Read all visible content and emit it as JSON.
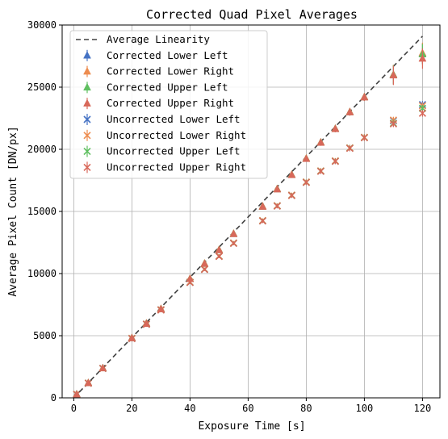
{
  "chart_data": {
    "type": "scatter",
    "title": "Corrected Quad Pixel Averages",
    "xlabel": "Exposure Time [s]",
    "ylabel": "Average Pixel Count [DN/px]",
    "xlim": [
      -4,
      126
    ],
    "ylim": [
      0,
      30000
    ],
    "xticks": [
      0,
      20,
      40,
      60,
      80,
      100,
      120
    ],
    "yticks": [
      0,
      5000,
      10000,
      15000,
      20000,
      25000,
      30000
    ],
    "grid": true,
    "legend_position": "upper-left",
    "x": [
      1,
      5,
      10,
      20,
      25,
      30,
      40,
      45,
      50,
      55,
      65,
      70,
      75,
      80,
      85,
      90,
      95,
      100,
      110,
      120
    ],
    "average_linearity": {
      "name": "Average Linearity",
      "color": "#404040",
      "x": [
        0,
        120
      ],
      "y": [
        0,
        29100
      ]
    },
    "series": [
      {
        "name": "Corrected Lower Left",
        "marker": "triangle",
        "color": "#4472c4",
        "y": [
          290,
          1200,
          2390,
          4820,
          5980,
          7150,
          9580,
          10800,
          11900,
          13200,
          15400,
          16800,
          17950,
          19250,
          20550,
          21650,
          23000,
          24200,
          26000,
          27700
        ]
      },
      {
        "name": "Corrected Lower Right",
        "marker": "triangle",
        "color": "#ed8c4f",
        "y": [
          295,
          1210,
          2400,
          4830,
          6000,
          7170,
          9600,
          10820,
          11920,
          13220,
          15420,
          16820,
          17970,
          19270,
          20570,
          21670,
          23020,
          24220,
          26020,
          27750
        ]
      },
      {
        "name": "Corrected Upper Left",
        "marker": "triangle",
        "color": "#5fbf60",
        "y": [
          285,
          1195,
          2385,
          4810,
          5970,
          7140,
          9570,
          10790,
          11890,
          13190,
          15390,
          16790,
          17940,
          19240,
          20540,
          21640,
          22990,
          24190,
          25990,
          27650
        ]
      },
      {
        "name": "Corrected Upper Right",
        "marker": "triangle",
        "color": "#d8685a",
        "y": [
          280,
          1190,
          2380,
          4800,
          5960,
          7130,
          9560,
          10780,
          11880,
          13180,
          15380,
          16780,
          17930,
          19230,
          20530,
          21630,
          22980,
          24180,
          25950,
          27300
        ]
      },
      {
        "name": "Uncorrected Lower Left",
        "marker": "x",
        "color": "#4472c4",
        "y": [
          280,
          1180,
          2370,
          4780,
          5930,
          7080,
          9300,
          10350,
          11400,
          12450,
          14250,
          15450,
          16300,
          17350,
          18250,
          19050,
          20100,
          20950,
          22300,
          23600
        ]
      },
      {
        "name": "Uncorrected Lower Right",
        "marker": "x",
        "color": "#ed8c4f",
        "y": [
          285,
          1185,
          2375,
          4790,
          5940,
          7090,
          9310,
          10360,
          11420,
          12470,
          14270,
          15470,
          16320,
          17370,
          18270,
          19070,
          20120,
          20970,
          22350,
          23500
        ]
      },
      {
        "name": "Uncorrected Upper Left",
        "marker": "x",
        "color": "#5fbf60",
        "y": [
          278,
          1178,
          2368,
          4775,
          5925,
          7075,
          9290,
          10340,
          11390,
          12440,
          14240,
          15440,
          16290,
          17340,
          18240,
          19040,
          20090,
          20940,
          22100,
          23300
        ]
      },
      {
        "name": "Uncorrected Upper Right",
        "marker": "x",
        "color": "#d8685a",
        "y": [
          275,
          1175,
          2365,
          4770,
          5920,
          7070,
          9280,
          10330,
          11380,
          12430,
          14230,
          15430,
          16280,
          17330,
          18230,
          19030,
          20080,
          20930,
          22050,
          22900
        ]
      }
    ]
  }
}
